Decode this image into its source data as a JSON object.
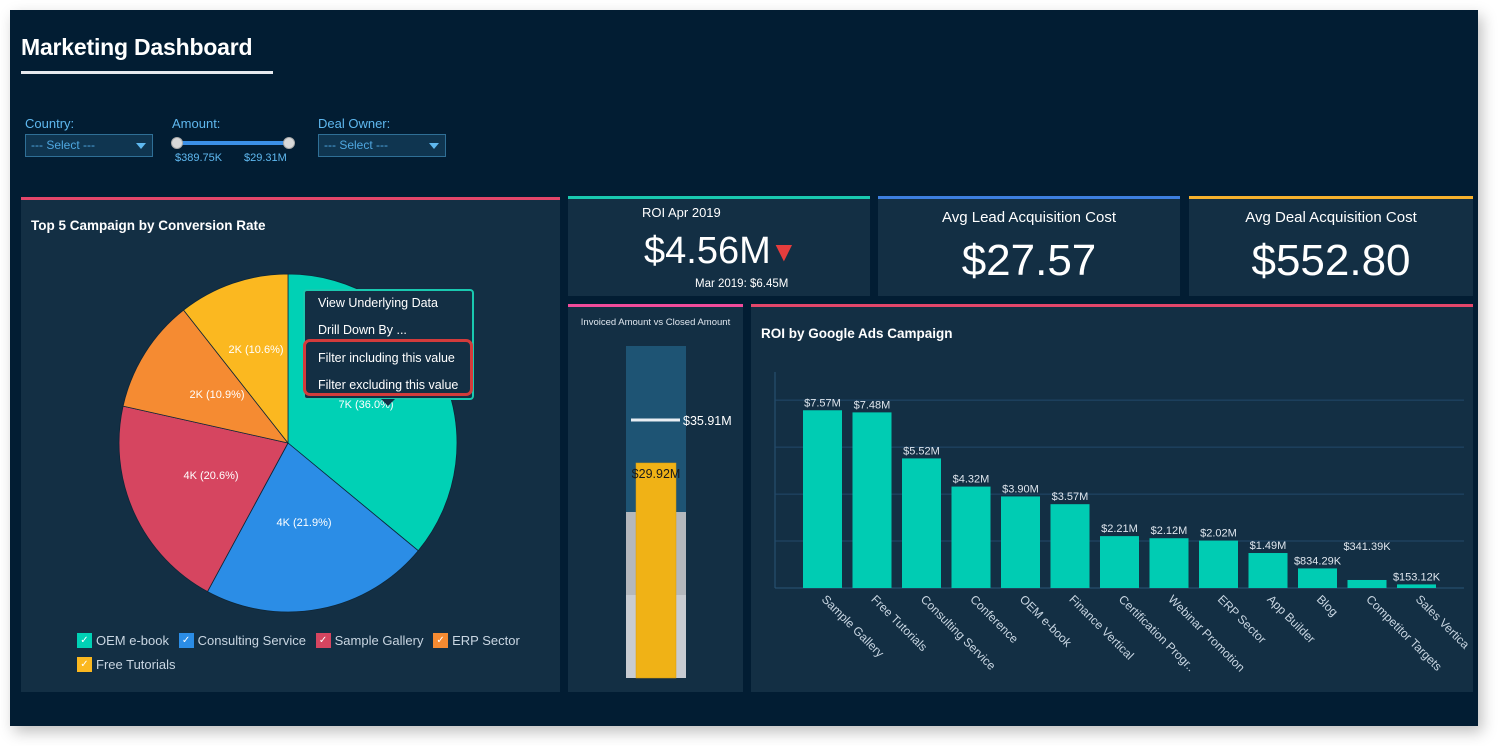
{
  "header": {
    "title": "Marketing Dashboard"
  },
  "filters": {
    "country": {
      "label": "Country:",
      "value": "--- Select ---"
    },
    "amount": {
      "label": "Amount:",
      "min_label": "$389.75K",
      "max_label": "$29.31M"
    },
    "deal_owner": {
      "label": "Deal Owner:",
      "value": "--- Select ---"
    }
  },
  "colors": {
    "teal": "#00d1b5",
    "blue": "#2b8de6",
    "red": "#d64560",
    "orange": "#f58b32",
    "yellow": "#fbb820",
    "pink_bar": "#e3466a",
    "kpi_teal": "#19c9b0",
    "kpi_blue": "#3d7fe0",
    "kpi_yellow": "#f6b12d",
    "down_arrow": "#e63d3d"
  },
  "pie_panel": {
    "title": "Top 5 Campaign by Conversion Rate",
    "legend": [
      {
        "label": "OEM e-book",
        "color": "#00d1b5"
      },
      {
        "label": "Consulting Service",
        "color": "#2b8de6"
      },
      {
        "label": "Sample Gallery",
        "color": "#d64560"
      },
      {
        "label": "ERP Sector",
        "color": "#f58b32"
      },
      {
        "label": "Free Tutorials",
        "color": "#fbb820"
      }
    ]
  },
  "context_menu": {
    "items": [
      "View Underlying Data",
      "Drill Down By ...",
      "Filter including this value",
      "Filter excluding this value"
    ]
  },
  "kpis": {
    "roi": {
      "label": "ROI Apr 2019",
      "value": "$4.56M",
      "trend": "down",
      "trend_icon": "▼",
      "compare": "Mar 2019: $6.45M"
    },
    "lead_cost": {
      "label": "Avg Lead Acquisition Cost",
      "value": "$27.57"
    },
    "deal_cost": {
      "label": "Avg Deal Acquisition Cost",
      "value": "$552.80"
    }
  },
  "bullet_panel": {
    "title": "Invoiced Amount vs Closed Amount"
  },
  "bar_panel": {
    "title": "ROI by Google Ads Campaign"
  },
  "chart_data": [
    {
      "type": "pie",
      "title": "Top 5 Campaign by Conversion Rate",
      "start_angle": "top, clockwise",
      "slices": [
        {
          "label": "OEM e-book",
          "value_label": "7K",
          "percent": 36.0,
          "color": "#00d1b5"
        },
        {
          "label": "Consulting Service",
          "value_label": "4K",
          "percent": 21.9,
          "color": "#2b8de6"
        },
        {
          "label": "Sample Gallery",
          "value_label": "4K",
          "percent": 20.6,
          "color": "#d64560"
        },
        {
          "label": "ERP Sector",
          "value_label": "2K",
          "percent": 10.9,
          "color": "#f58b32"
        },
        {
          "label": "Free Tutorials",
          "value_label": "2K",
          "percent": 10.6,
          "color": "#fbb820"
        }
      ],
      "legend": "bottom"
    },
    {
      "type": "bar",
      "subtype": "bullet",
      "title": "Invoiced Amount vs Closed Amount",
      "actual": 29.92,
      "actual_label": "$29.92M",
      "target": 35.91,
      "target_label": "$35.91M",
      "ranges": [
        11.55,
        23.1,
        46.2
      ],
      "range_colors": [
        "#c8ccd2",
        "#b4b8bd",
        "#1e5474"
      ],
      "unit": "M",
      "orientation": "vertical"
    },
    {
      "type": "bar",
      "title": "ROI by Google Ads Campaign",
      "categories": [
        "Sample Gallery",
        "Free Tutorials",
        "Consulting Service",
        "Conference",
        "OEM e-book",
        "Finance Vertical",
        "Certification Progr..",
        "Webinar Promotion",
        "ERP Sector",
        "App Builder",
        "Blog",
        "Competitor Targets",
        "Sales Vertica"
      ],
      "values": [
        7.57,
        7.48,
        5.52,
        4.32,
        3.9,
        3.57,
        2.21,
        2.12,
        2.02,
        1.49,
        0.83429,
        0.34139,
        0.15312
      ],
      "value_labels": [
        "$7.57M",
        "$7.48M",
        "$5.52M",
        "$4.32M",
        "$3.90M",
        "$3.57M",
        "$2.21M",
        "$2.12M",
        "$2.02M",
        "$1.49M",
        "$834.29K",
        "$341.39K",
        "$153.12K"
      ],
      "ylim": [
        0,
        9.2
      ],
      "gridlines": [
        2,
        4,
        6,
        8
      ],
      "grid": true,
      "xlabel": "",
      "ylabel": "",
      "unit": "M",
      "color": "#00ccb3"
    }
  ]
}
